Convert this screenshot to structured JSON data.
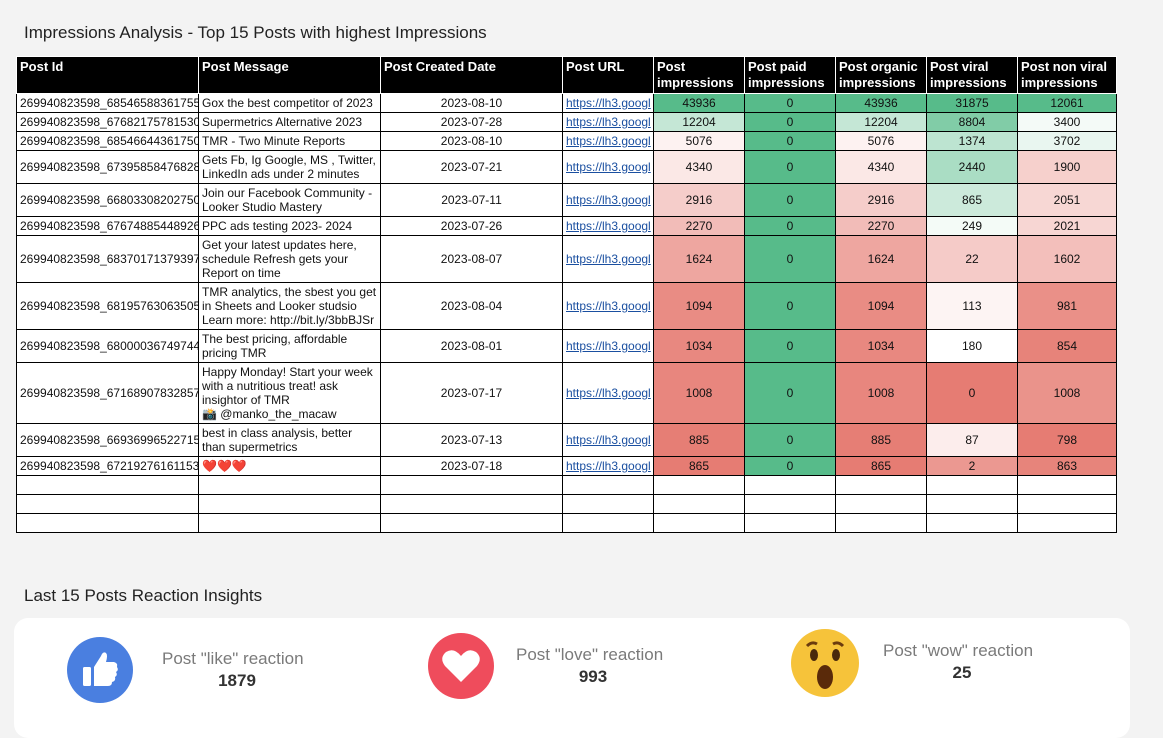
{
  "report": {
    "title": "Impressions Analysis - Top 15 Posts with highest Impressions"
  },
  "table": {
    "columns": [
      "Post Id",
      "Post Message",
      "Post Created Date",
      "Post URL",
      "Post impressions",
      "Post paid impressions",
      "Post organic impressions",
      "Post viral impressions",
      "Post non viral impressions"
    ],
    "color_scale": {
      "low": "#e67c73",
      "mid": "#ffffff",
      "high": "#57bb8a"
    },
    "rows": [
      [
        "269940823598_68546588361755",
        "Gox the best competitor of 2023",
        "2023-08-10",
        "https://lh3.googl",
        43936,
        0,
        43936,
        31875,
        12061
      ],
      [
        "269940823598_67682175781530",
        "Supermetrics Alternative 2023",
        "2023-07-28",
        "https://lh3.googl",
        12204,
        0,
        12204,
        8804,
        3400
      ],
      [
        "269940823598_68546644361750",
        "TMR - Two Minute Reports",
        "2023-08-10",
        "https://lh3.googl",
        5076,
        0,
        5076,
        1374,
        3702
      ],
      [
        "269940823598_67395858476828",
        "Gets Fb, Ig Google, MS , Twitter, LinkedIn ads under 2 minutes",
        "2023-07-21",
        "https://lh3.googl",
        4340,
        0,
        4340,
        2440,
        1900
      ],
      [
        "269940823598_66803308202750",
        "Join our Facebook Community - Looker Studio Mastery",
        "2023-07-11",
        "https://lh3.googl",
        2916,
        0,
        2916,
        865,
        2051
      ],
      [
        "269940823598_67674885448926",
        "PPC ads testing 2023- 2024",
        "2023-07-26",
        "https://lh3.googl",
        2270,
        0,
        2270,
        249,
        2021
      ],
      [
        "269940823598_68370171379397",
        "Get your latest updates here, schedule Refresh gets your Report on time",
        "2023-08-07",
        "https://lh3.googl",
        1624,
        0,
        1624,
        22,
        1602
      ],
      [
        "269940823598_68195763063505",
        "TMR analytics, the sbest you get in Sheets and Looker studsio Learn more: http://bit.ly/3bbBJSr",
        "2023-08-04",
        "https://lh3.googl",
        1094,
        0,
        1094,
        113,
        981
      ],
      [
        "269940823598_68000036749744",
        "The best pricing, affordable pricing TMR",
        "2023-08-01",
        "https://lh3.googl",
        1034,
        0,
        1034,
        180,
        854
      ],
      [
        "269940823598_67168907832857",
        "Happy Monday! Start your week with a nutritious treat! ask insightor of TMR\n📸 @manko_the_macaw",
        "2023-07-17",
        "https://lh3.googl",
        1008,
        0,
        1008,
        0,
        1008
      ],
      [
        "269940823598_66936996522715",
        "best in class analysis, better than supermetrics",
        "2023-07-13",
        "https://lh3.googl",
        885,
        0,
        885,
        87,
        798
      ],
      [
        "269940823598_67219276161153",
        "❤️❤️❤️",
        "2023-07-18",
        "https://lh3.googl",
        865,
        0,
        865,
        2,
        863
      ]
    ]
  },
  "reactions": {
    "title": "Last 15 Posts Reaction Insights",
    "items": [
      {
        "label": "Post \"like\" reaction",
        "value": 1879
      },
      {
        "label": "Post \"love\" reaction",
        "value": 993
      },
      {
        "label": "Post \"wow\" reaction",
        "value": 25
      }
    ]
  }
}
